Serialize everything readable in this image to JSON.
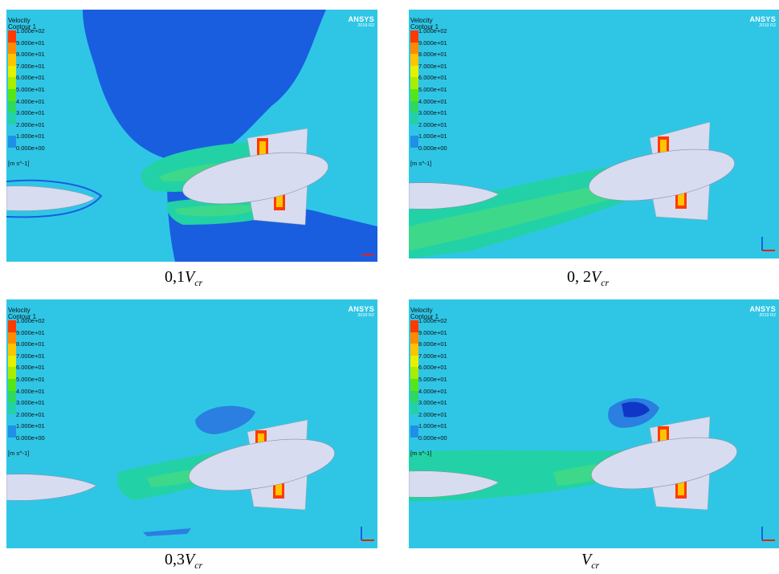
{
  "legend": {
    "title_line1": "Velocity",
    "title_line2": "Contour 1",
    "unit": "[m s^-1]",
    "levels": [
      "1.000e+02",
      "9.000e+01",
      "8.000e+01",
      "7.000e+01",
      "6.000e+01",
      "5.000e+01",
      "4.000e+01",
      "3.000e+01",
      "2.000e+01",
      "1.000e+01",
      "0.000e+00"
    ],
    "colors": [
      "#ff3a00",
      "#ff8a00",
      "#ffc400",
      "#e6f000",
      "#a8ee00",
      "#55e61a",
      "#2fd85f",
      "#22d2a6",
      "#2fc6e6",
      "#1f8fe8",
      "#1036c8"
    ]
  },
  "brand": {
    "name": "ANSYS",
    "version": "2019 R2"
  },
  "panels": [
    {
      "caption_prefix": "0,1",
      "caption_var": "V",
      "caption_sub": "cr"
    },
    {
      "caption_prefix": "0, 2",
      "caption_var": "V",
      "caption_sub": "cr"
    },
    {
      "caption_prefix": "0,3",
      "caption_var": "V",
      "caption_sub": "cr"
    },
    {
      "caption_prefix": "",
      "caption_var": "V",
      "caption_sub": "cr"
    }
  ]
}
